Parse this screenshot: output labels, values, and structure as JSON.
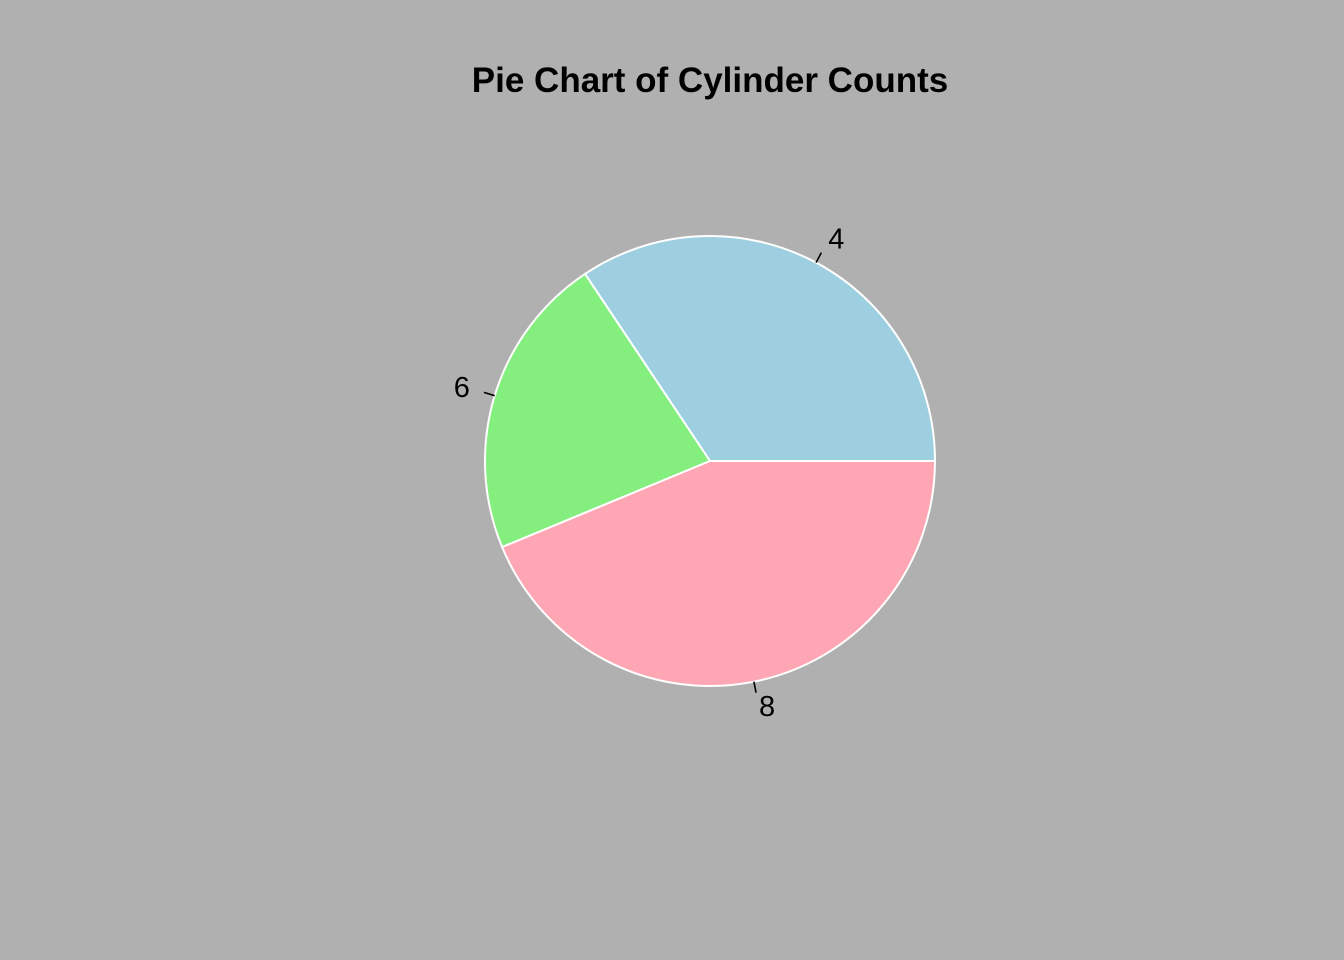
{
  "chart_data": {
    "type": "pie",
    "title": "Pie Chart of Cylinder Counts",
    "slices": [
      {
        "label": "4",
        "value": 11,
        "color": "#9ecfe0"
      },
      {
        "label": "6",
        "value": 7,
        "color": "#84ee7f"
      },
      {
        "label": "8",
        "value": 14,
        "color": "#ffa6b4"
      }
    ],
    "start_angle_deg": 0,
    "direction": "counterclockwise",
    "legend": "none",
    "background": "#b0b0b0",
    "slice_border_color": "#ffffff"
  }
}
